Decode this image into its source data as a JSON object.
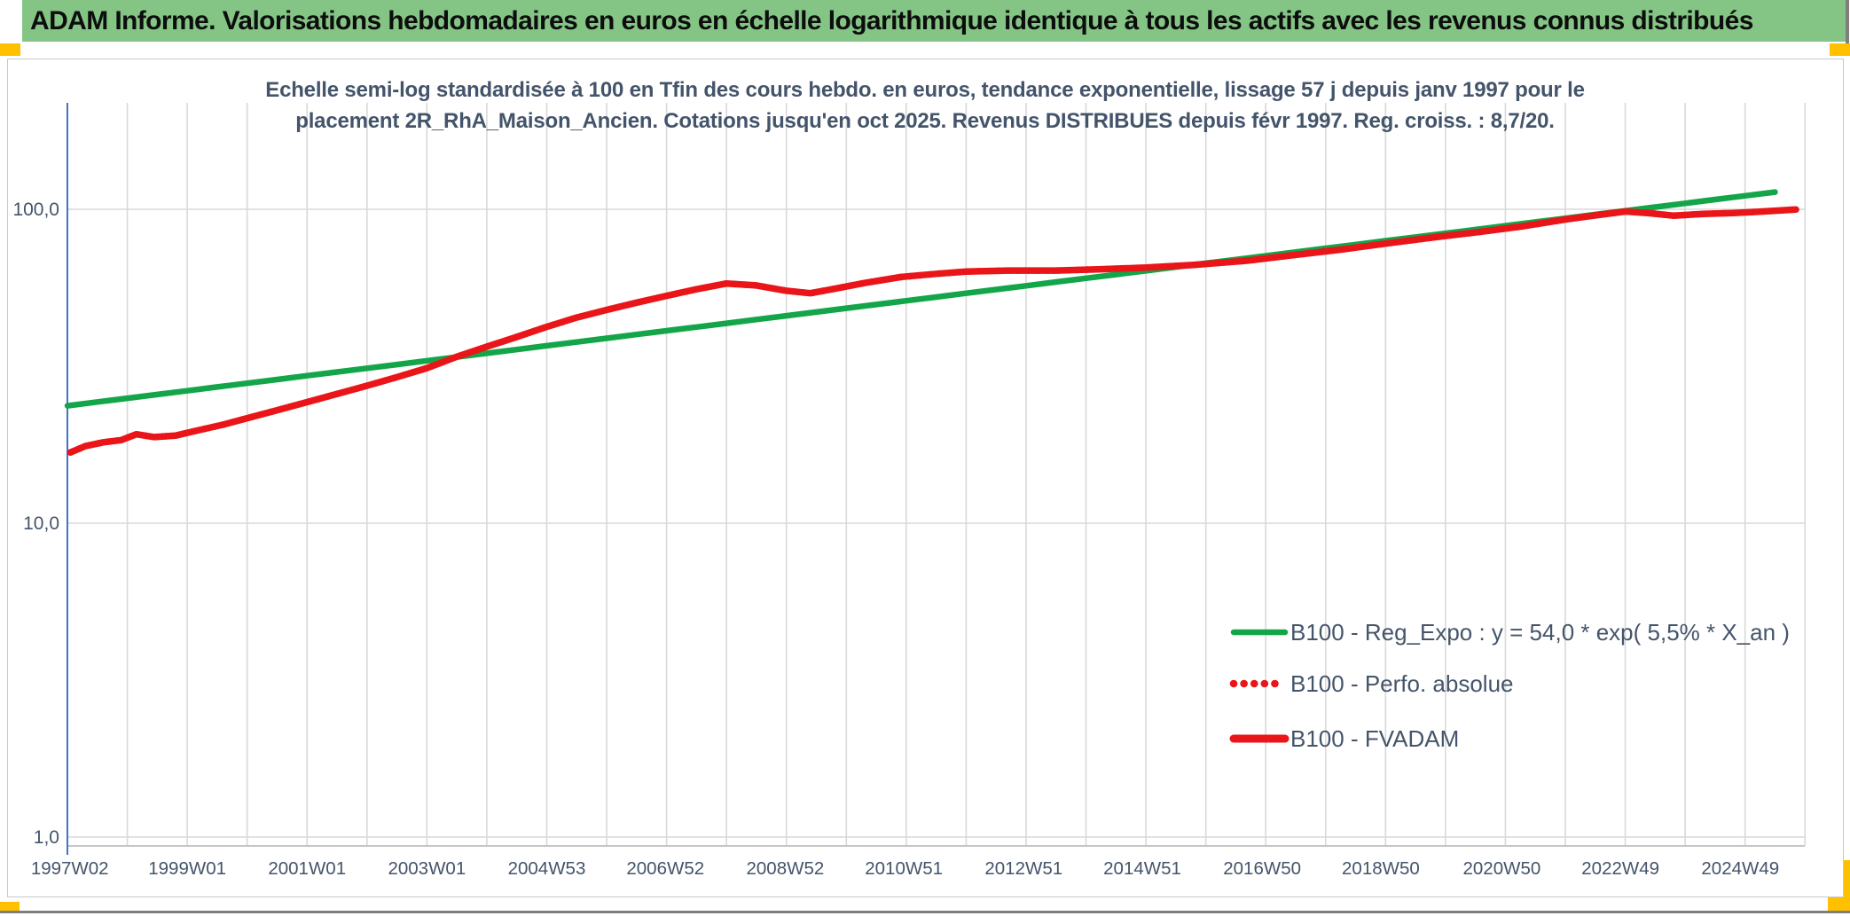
{
  "banner": {
    "title": "ADAM Informe. Valorisations hebdomadaires en euros en échelle logarithmique identique à tous les actifs avec les revenus connus distribués",
    "bg_color": "#84C585"
  },
  "accents": {
    "color": "#FFC000"
  },
  "chart_data": {
    "type": "line",
    "title_line1": "Echelle semi-log standardisée à 100 en Tfin des cours hebdo. en euros, tendance exponentielle, lissage 57 j depuis janv 1997 pour le",
    "title_line2": "placement 2R_RhA_Maison_Ancien. Cotations jusqu'en oct 2025. Revenus DISTRIBUES depuis févr 1997. Reg. croiss. : 8,7/20.",
    "title_color": "#44546A",
    "x_axis": {
      "range_years": [
        1997.0,
        2026.0
      ],
      "gridline_every_years": 1,
      "axis_line_color": "#C6C6C6",
      "y_axis_line_color": "#4472C4",
      "gridline_color": "#D9D9D9",
      "tick_label_color": "#44546A",
      "ticks": [
        {
          "label": "1997W02",
          "year": 1997.04
        },
        {
          "label": "1999W01",
          "year": 1999.0
        },
        {
          "label": "2001W01",
          "year": 2001.0
        },
        {
          "label": "2003W01",
          "year": 2003.0
        },
        {
          "label": "2004W53",
          "year": 2005.0
        },
        {
          "label": "2006W52",
          "year": 2006.98
        },
        {
          "label": "2008W52",
          "year": 2008.98
        },
        {
          "label": "2010W51",
          "year": 2010.96
        },
        {
          "label": "2012W51",
          "year": 2012.96
        },
        {
          "label": "2014W51",
          "year": 2014.94
        },
        {
          "label": "2016W50",
          "year": 2016.94
        },
        {
          "label": "2018W50",
          "year": 2018.92
        },
        {
          "label": "2020W50",
          "year": 2020.94
        },
        {
          "label": "2022W49",
          "year": 2022.92
        },
        {
          "label": "2024W49",
          "year": 2024.92
        }
      ]
    },
    "y_axis": {
      "scale": "log10",
      "ticks": [
        {
          "label": "100,0",
          "value": 100
        },
        {
          "label": "10,0",
          "value": 10
        },
        {
          "label": "1,0",
          "value": 1
        }
      ],
      "range": [
        1,
        210
      ]
    },
    "series": [
      {
        "name": "B100 - Reg_Expo : y = 54,0 * exp( 5,5% *  X_an )",
        "color": "#13A549",
        "style": "solid",
        "width": 6.5,
        "kind": "formula",
        "formula": {
          "base": 54.0,
          "rate_per_year": 0.055,
          "x_zero_year": 2012.0
        },
        "x_start": 1997.0,
        "x_end": 2025.9
      },
      {
        "name": "B100 - Perfo. absolue",
        "color": "#EA1518",
        "style": "dotted",
        "width": 7.5,
        "kind": "data",
        "coincides_with": "B100 - FVADAM"
      },
      {
        "name": "B100 - FVADAM",
        "color": "#EA1518",
        "style": "solid",
        "width": 7.5,
        "kind": "data",
        "points": [
          [
            1997.05,
            16.8
          ],
          [
            1997.3,
            17.6
          ],
          [
            1997.6,
            18.1
          ],
          [
            1997.9,
            18.4
          ],
          [
            1998.15,
            19.2
          ],
          [
            1998.45,
            18.8
          ],
          [
            1998.8,
            19.0
          ],
          [
            1999.2,
            19.8
          ],
          [
            1999.6,
            20.6
          ],
          [
            2000.0,
            21.6
          ],
          [
            2000.5,
            22.9
          ],
          [
            2001.0,
            24.3
          ],
          [
            2001.5,
            25.8
          ],
          [
            2002.0,
            27.4
          ],
          [
            2002.5,
            29.2
          ],
          [
            2003.0,
            31.2
          ],
          [
            2003.5,
            33.9
          ],
          [
            2004.0,
            36.5
          ],
          [
            2004.5,
            39.2
          ],
          [
            2005.0,
            42.2
          ],
          [
            2005.5,
            45.2
          ],
          [
            2006.0,
            47.8
          ],
          [
            2006.5,
            50.4
          ],
          [
            2007.0,
            53.0
          ],
          [
            2007.5,
            55.6
          ],
          [
            2008.0,
            58.0
          ],
          [
            2008.5,
            57.2
          ],
          [
            2009.0,
            55.0
          ],
          [
            2009.4,
            54.0
          ],
          [
            2009.8,
            55.8
          ],
          [
            2010.3,
            58.2
          ],
          [
            2010.9,
            60.8
          ],
          [
            2011.5,
            62.3
          ],
          [
            2012.0,
            63.3
          ],
          [
            2012.7,
            63.8
          ],
          [
            2013.5,
            63.8
          ],
          [
            2014.2,
            64.4
          ],
          [
            2015.0,
            65.2
          ],
          [
            2015.8,
            66.5
          ],
          [
            2016.7,
            68.6
          ],
          [
            2017.5,
            71.6
          ],
          [
            2018.3,
            74.6
          ],
          [
            2019.1,
            78.2
          ],
          [
            2019.9,
            81.8
          ],
          [
            2020.6,
            84.8
          ],
          [
            2021.3,
            88.3
          ],
          [
            2022.0,
            92.8
          ],
          [
            2022.6,
            96.2
          ],
          [
            2023.0,
            98.4
          ],
          [
            2023.4,
            97.2
          ],
          [
            2023.8,
            95.4
          ],
          [
            2024.3,
            96.6
          ],
          [
            2024.8,
            97.3
          ],
          [
            2025.3,
            98.4
          ],
          [
            2025.85,
            99.8
          ]
        ]
      }
    ],
    "legend_position": "inside-right-lower",
    "legend_text_color": "#44546A"
  }
}
